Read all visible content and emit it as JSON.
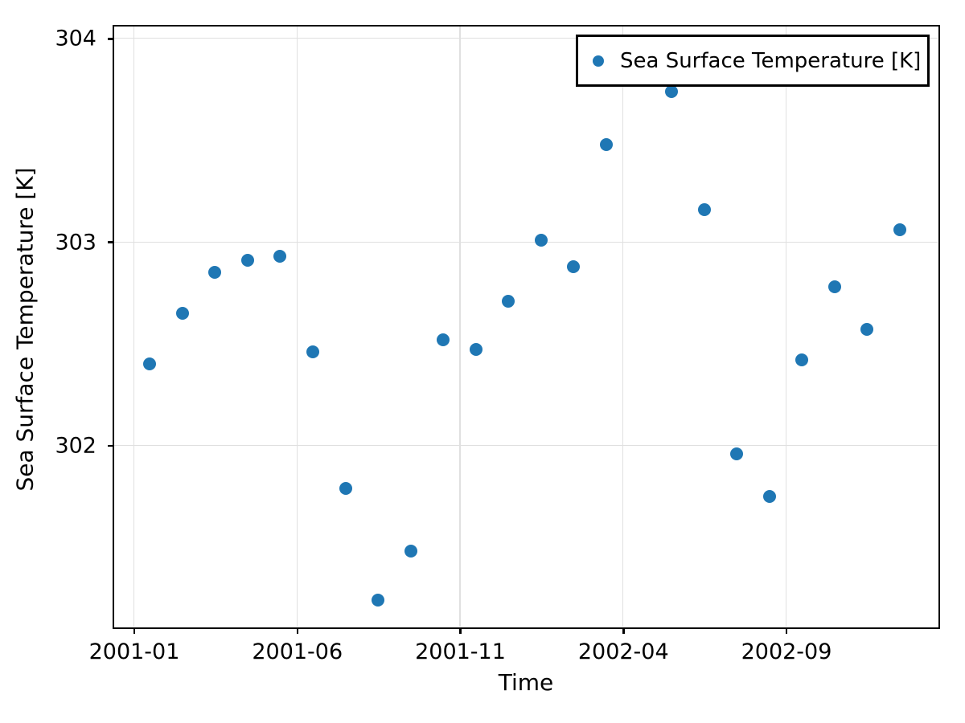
{
  "colors": {
    "marker": "#1f77b4",
    "grid": "#e0e0e0",
    "axis": "#000000",
    "background": "#ffffff"
  },
  "chart_data": {
    "type": "scatter",
    "title": "",
    "xlabel": "Time",
    "ylabel": "Sea Surface Temperature [K]",
    "grid": true,
    "legend_position": "upper right",
    "ylim": [
      301.11,
      304.06
    ],
    "xlim_months_from_first_tick": [
      -0.62,
      24.66
    ],
    "x_ticks": [
      {
        "label": "2001-01",
        "month": 0
      },
      {
        "label": "2001-06",
        "month": 5
      },
      {
        "label": "2001-11",
        "month": 10
      },
      {
        "label": "2002-04",
        "month": 15
      },
      {
        "label": "2002-09",
        "month": 20
      }
    ],
    "y_ticks": [
      302,
      303,
      304
    ],
    "series": [
      {
        "name": "Sea Surface Temperature [K]",
        "points": [
          {
            "date": "2001-01",
            "value": 302.4
          },
          {
            "date": "2001-02",
            "value": 302.65
          },
          {
            "date": "2001-03",
            "value": 302.85
          },
          {
            "date": "2001-04",
            "value": 302.91
          },
          {
            "date": "2001-05",
            "value": 302.93
          },
          {
            "date": "2001-06",
            "value": 302.46
          },
          {
            "date": "2001-07",
            "value": 301.79
          },
          {
            "date": "2001-08",
            "value": 301.24
          },
          {
            "date": "2001-09",
            "value": 301.48
          },
          {
            "date": "2001-10",
            "value": 302.52
          },
          {
            "date": "2001-11",
            "value": 302.47
          },
          {
            "date": "2001-12",
            "value": 302.71
          },
          {
            "date": "2002-01",
            "value": 303.01
          },
          {
            "date": "2002-02",
            "value": 302.88
          },
          {
            "date": "2002-03",
            "value": 303.48
          },
          {
            "date": "2002-05",
            "value": 303.74
          },
          {
            "date": "2002-06",
            "value": 303.16
          },
          {
            "date": "2002-07",
            "value": 301.96
          },
          {
            "date": "2002-08",
            "value": 301.75
          },
          {
            "date": "2002-09",
            "value": 302.42
          },
          {
            "date": "2002-10",
            "value": 302.78
          },
          {
            "date": "2002-11",
            "value": 302.57
          },
          {
            "date": "2002-12",
            "value": 303.06
          }
        ]
      }
    ]
  }
}
